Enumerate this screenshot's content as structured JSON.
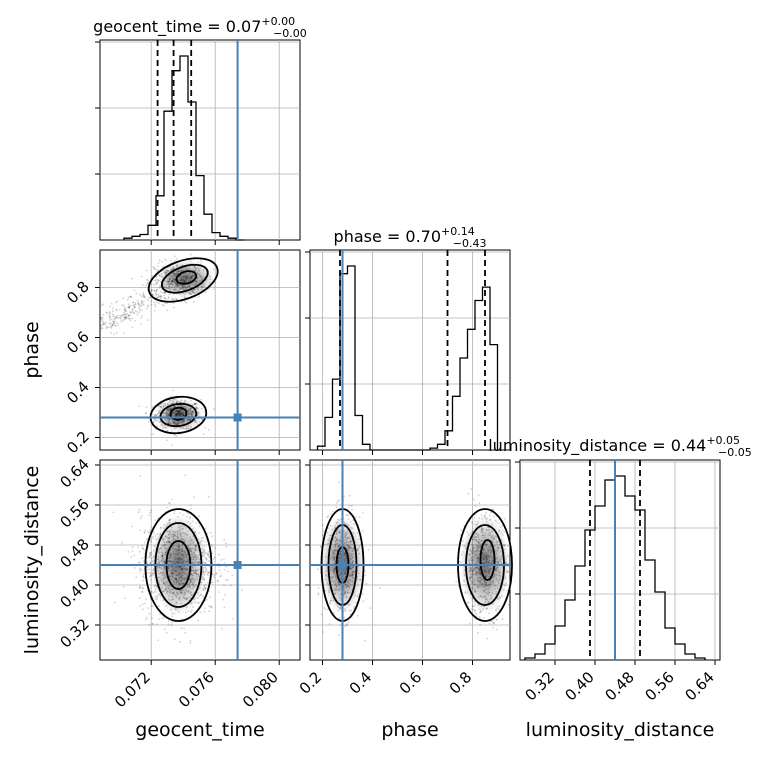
{
  "chart_data": {
    "type": "corner",
    "parameters": [
      "geocent_time",
      "phase",
      "luminosity_distance"
    ],
    "ranges": {
      "geocent_time": [
        0.0688,
        0.0813
      ],
      "phase": [
        0.15,
        0.95
      ],
      "luminosity_distance": [
        0.25,
        0.65
      ]
    },
    "truths": {
      "geocent_time": 0.0774,
      "phase": 0.28,
      "luminosity_distance": 0.44
    },
    "titles": {
      "geocent_time": {
        "param": "geocent_time",
        "median": "0.07",
        "plus": "+0.00",
        "minus": "−0.00"
      },
      "phase": {
        "param": "phase",
        "median": "0.70",
        "plus": "+0.14",
        "minus": "−0.43"
      },
      "luminosity_distance": {
        "param": "luminosity_distance",
        "median": "0.44",
        "plus": "+0.05",
        "minus": "−0.05"
      }
    },
    "quantiles": {
      "geocent_time": [
        0.0724,
        0.0734,
        0.0745
      ],
      "phase": [
        0.27,
        0.7,
        0.85
      ],
      "luminosity_distance": [
        0.39,
        0.44,
        0.49
      ]
    },
    "ticks": {
      "geocent_time": [
        "0.072",
        "0.076",
        "0.080"
      ],
      "phase_x": [
        "0.2",
        "0.4",
        "0.6",
        "0.8"
      ],
      "phase_y": [
        "0.2",
        "0.4",
        "0.6",
        "0.8"
      ],
      "luminosity_distance_x": [
        "0.32",
        "0.40",
        "0.48",
        "0.56",
        "0.64"
      ],
      "luminosity_distance_y": [
        "0.32",
        "0.40",
        "0.48",
        "0.56",
        "0.64"
      ]
    },
    "histograms": {
      "geocent_time": {
        "edges": [
          0.0703,
          0.0708,
          0.0713,
          0.0718,
          0.0723,
          0.0728,
          0.0733,
          0.0738,
          0.0743,
          0.0748,
          0.0753,
          0.0758,
          0.0763,
          0.0768,
          0.0773,
          0.0778
        ],
        "counts": [
          1,
          2,
          3,
          8,
          24,
          70,
          92,
          100,
          75,
          35,
          14,
          4,
          2,
          1,
          0
        ]
      },
      "phase": {
        "edges": [
          0.18,
          0.21,
          0.24,
          0.27,
          0.3,
          0.33,
          0.36,
          0.39,
          0.42,
          0.45,
          0.48,
          0.51,
          0.54,
          0.57,
          0.6,
          0.63,
          0.66,
          0.69,
          0.72,
          0.75,
          0.78,
          0.81,
          0.84,
          0.87,
          0.9
        ],
        "counts": [
          2,
          17,
          37,
          92,
          96,
          18,
          3,
          0,
          0,
          0,
          0,
          0,
          0,
          0,
          0,
          1,
          3,
          10,
          28,
          48,
          63,
          78,
          85,
          55
        ]
      },
      "luminosity_distance": {
        "edges": [
          0.26,
          0.28,
          0.3,
          0.32,
          0.34,
          0.36,
          0.38,
          0.4,
          0.42,
          0.44,
          0.46,
          0.48,
          0.5,
          0.52,
          0.54,
          0.56,
          0.58,
          0.6,
          0.62
        ],
        "counts": [
          1,
          3,
          8,
          17,
          30,
          47,
          65,
          77,
          90,
          92,
          82,
          75,
          50,
          34,
          16,
          8,
          3,
          1
        ]
      }
    }
  }
}
